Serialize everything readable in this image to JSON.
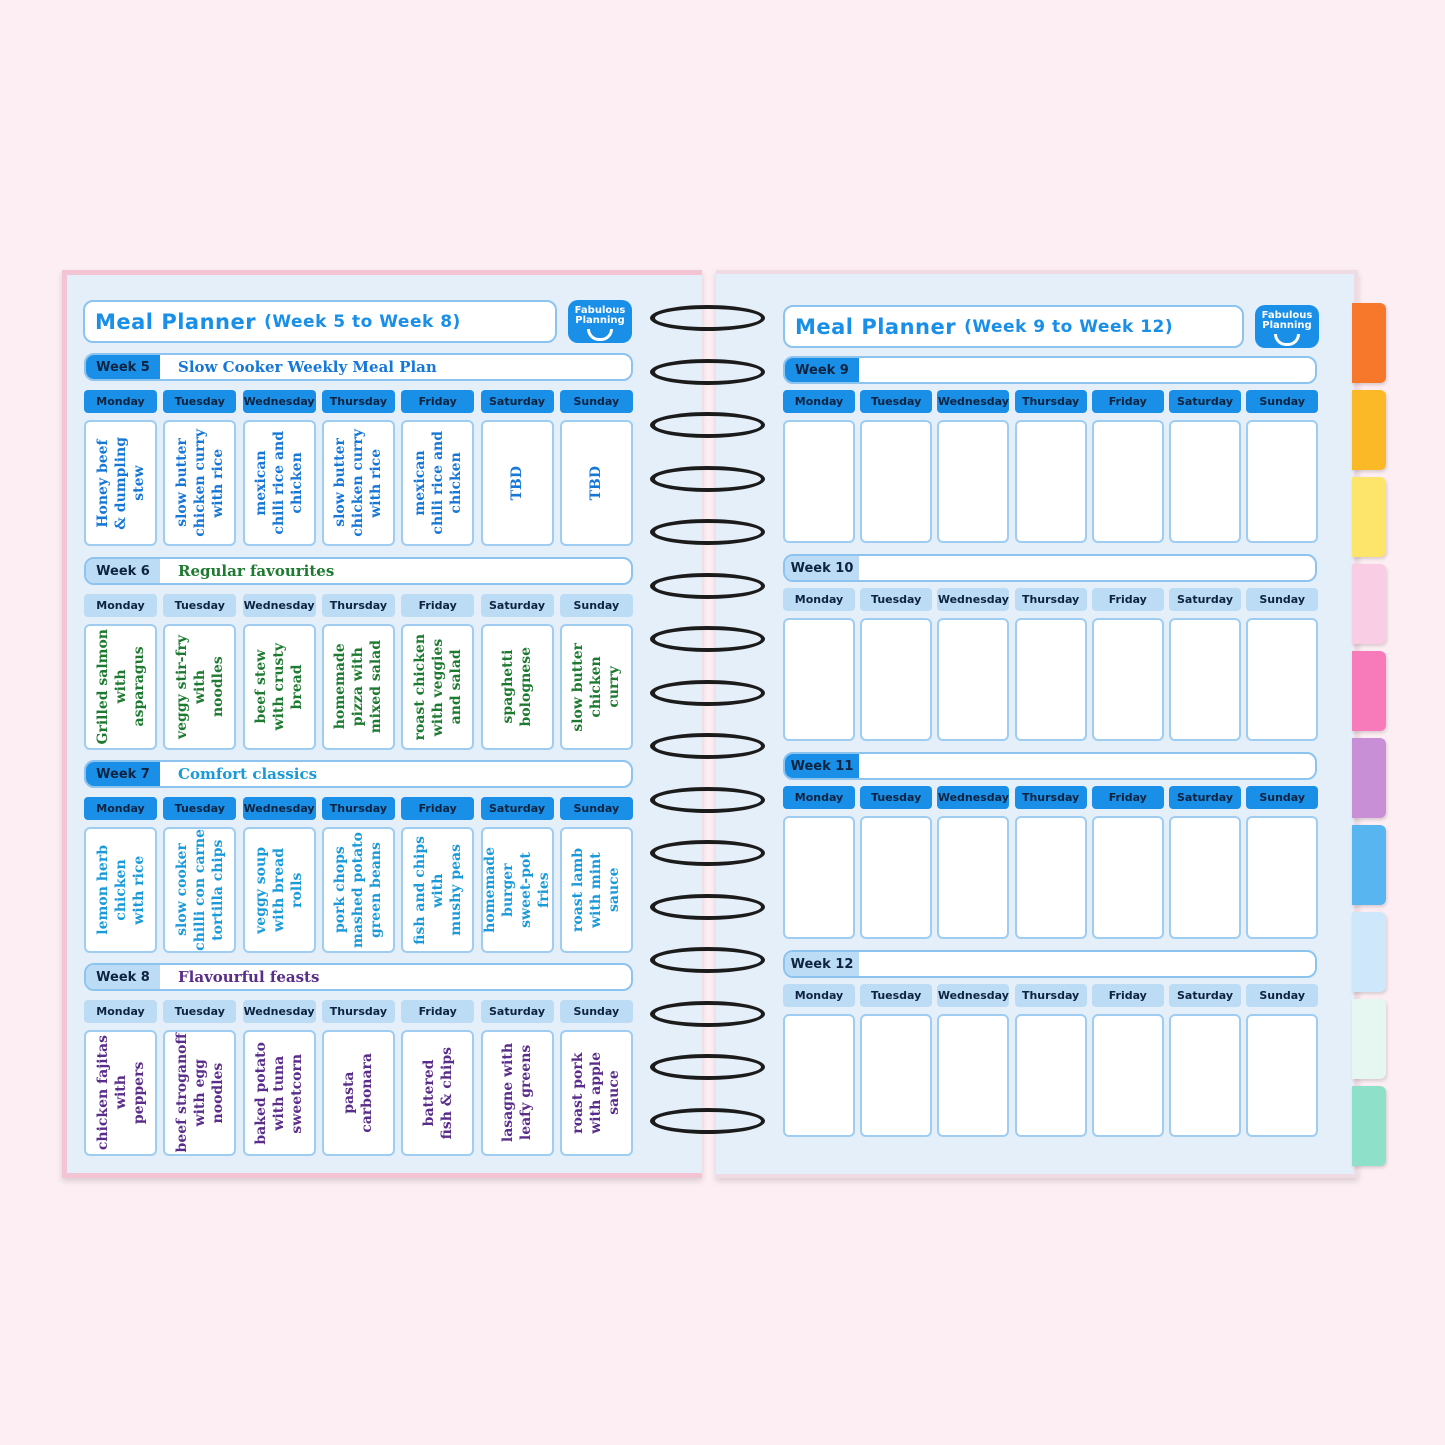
{
  "brand": {
    "logo_text": "Fabulous Planning"
  },
  "left_page": {
    "title": "Meal Planner",
    "subtitle": "(Week 5 to Week 8)",
    "weeks": [
      {
        "label": "Week 5",
        "theme": "Slow Cooker Weekly Meal Plan",
        "style": "dark",
        "text_color": "#1677d6",
        "meals": [
          "Honey beef\n& dumpling\nstew",
          "slow butter\nchicken curry\nwith rice",
          "mexican\nchili rice and\nchicken",
          "slow butter\nchicken curry\nwith rice",
          "mexican\nchili rice and\nchicken",
          "TBD",
          "TBD"
        ]
      },
      {
        "label": "Week 6",
        "theme": "Regular favourites",
        "style": "light",
        "text_color": "#1e7a30",
        "meals": [
          "Grilled salmon\nwith\nasparagus",
          "veggy stir-fry\nwith\nnoodles",
          "beef stew\nwith crusty\nbread",
          "homemade\npizza with\nmixed salad",
          "roast chicken\nwith veggies\nand salad",
          "spaghetti\nbolognese",
          "slow butter\nchicken\ncurry"
        ]
      },
      {
        "label": "Week 7",
        "theme": "Comfort classics",
        "style": "dark",
        "text_color": "#1a9ad9",
        "meals": [
          "lemon herb\nchicken\nwith rice",
          "slow cooker\nchilli con carne\ntortilla chips",
          "veggy soup\nwith bread\nrolls",
          "pork chops\nmashed potato\ngreen beans",
          "fish and chips\nwith\nmushy peas",
          "homemade\nburger\nsweet-pot\nfries",
          "roast lamb\nwith mint\nsauce"
        ]
      },
      {
        "label": "Week 8",
        "theme": "Flavourful feasts",
        "style": "light",
        "text_color": "#5a2d8a",
        "meals": [
          "chicken fajitas\nwith\npeppers",
          "beef stroganoff\nwith egg\nnoodles",
          "baked potato\nwith tuna\nsweetcorn",
          "pasta\ncarbonara",
          "battered\nfish & chips",
          "lasagne with\nleafy greens",
          "roast pork\nwith apple\nsauce"
        ]
      }
    ]
  },
  "right_page": {
    "title": "Meal Planner",
    "subtitle": "(Week 9 to Week 12)",
    "weeks": [
      {
        "label": "Week 9",
        "theme": "",
        "style": "dark",
        "meals": [
          "",
          "",
          "",
          "",
          "",
          "",
          ""
        ]
      },
      {
        "label": "Week 10",
        "theme": "",
        "style": "light",
        "meals": [
          "",
          "",
          "",
          "",
          "",
          "",
          ""
        ]
      },
      {
        "label": "Week 11",
        "theme": "",
        "style": "dark",
        "meals": [
          "",
          "",
          "",
          "",
          "",
          "",
          ""
        ]
      },
      {
        "label": "Week 12",
        "theme": "",
        "style": "light",
        "meals": [
          "",
          "",
          "",
          "",
          "",
          "",
          ""
        ]
      }
    ]
  },
  "days": [
    "Monday",
    "Tuesday",
    "Wednesday",
    "Thursday",
    "Friday",
    "Saturday",
    "Sunday"
  ],
  "colors": {
    "dark_header": "#1a8fe8",
    "light_header": "#bcdcf5"
  },
  "tab_colors": [
    "#f7782b",
    "#fbb928",
    "#fde46a",
    "#f9cde3",
    "#f77bbb",
    "#c98fd6",
    "#59b5f0",
    "#cfe7fb",
    "#e6f7f2",
    "#8fe0c8"
  ]
}
